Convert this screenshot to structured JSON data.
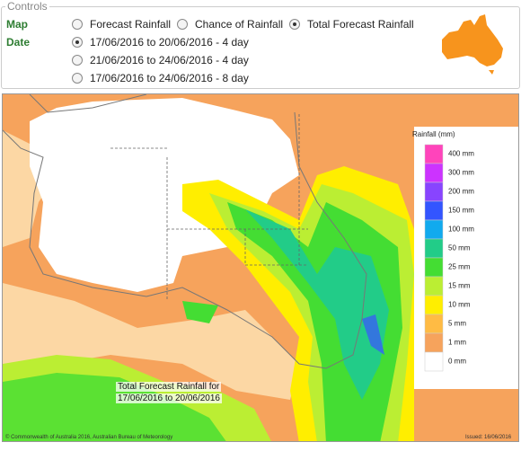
{
  "controls": {
    "title": "Controls",
    "map_label": "Map",
    "map_options": [
      {
        "label": "Forecast Rainfall",
        "selected": false
      },
      {
        "label": "Chance of Rainfall",
        "selected": false
      },
      {
        "label": "Total Forecast Rainfall",
        "selected": true
      }
    ],
    "date_label": "Date",
    "date_options": [
      {
        "label": "17/06/2016 to 20/06/2016 - 4 day",
        "selected": true
      },
      {
        "label": "21/06/2016 to 24/06/2016 - 4 day",
        "selected": false
      },
      {
        "label": "17/06/2016 to 24/06/2016 - 8 day",
        "selected": false
      }
    ]
  },
  "map": {
    "legend_title": "Rainfall (mm)",
    "legend": [
      {
        "label": "400 mm",
        "color": "#ff44bb"
      },
      {
        "label": "300 mm",
        "color": "#cc33ff"
      },
      {
        "label": "200 mm",
        "color": "#8844ff"
      },
      {
        "label": "150 mm",
        "color": "#3355ff"
      },
      {
        "label": "100 mm",
        "color": "#11aaee"
      },
      {
        "label": "50 mm",
        "color": "#22cc88"
      },
      {
        "label": "25 mm",
        "color": "#44dd33"
      },
      {
        "label": "15 mm",
        "color": "#bbee33"
      },
      {
        "label": "10 mm",
        "color": "#ffee00"
      },
      {
        "label": "5 mm",
        "color": "#ffbb44"
      },
      {
        "label": "1 mm",
        "color": "#f6a35c"
      },
      {
        "label": "0 mm",
        "color": "#ffffff"
      }
    ],
    "caption": [
      "Total Forecast Rainfall for",
      "17/06/2016 to 20/06/2016"
    ],
    "copyright": "© Commonwealth of Australia 2016, Australian Bureau of Meteorology",
    "issued": "Issued: 16/06/2016"
  }
}
